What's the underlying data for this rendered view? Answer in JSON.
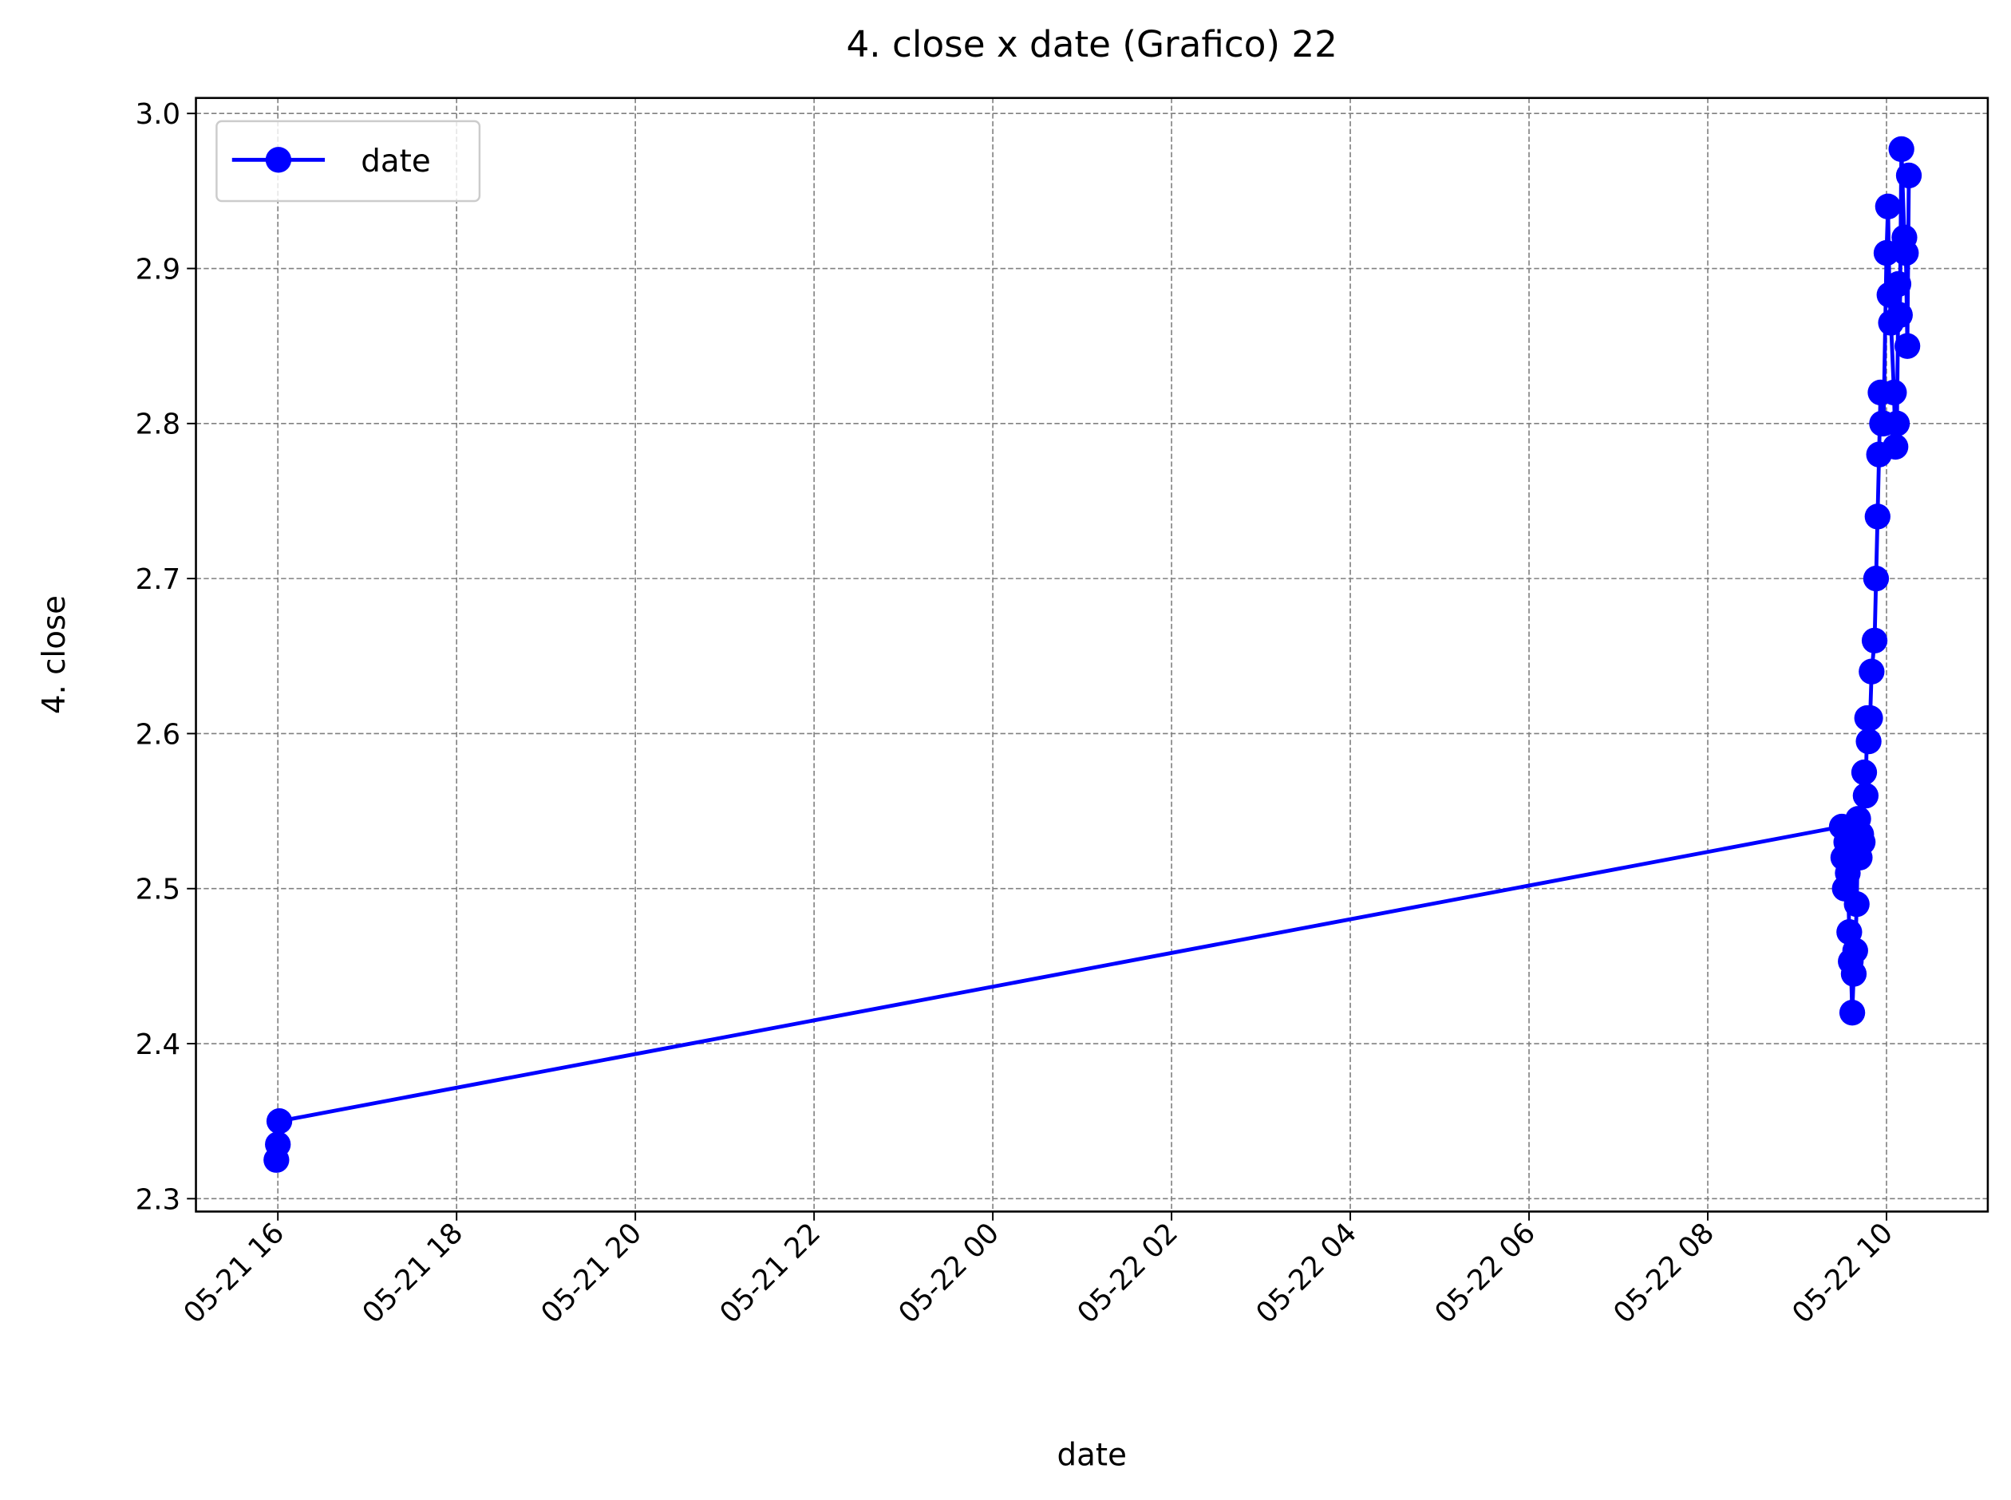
{
  "chart_data": {
    "type": "line",
    "title": "4. close x date (Grafico) 22",
    "x_label": "date",
    "y_label": "4. close",
    "x": [
      "05-21 15:59",
      "05-21 16:00",
      "05-21 16:01",
      "05-22 09:30",
      "05-22 09:31",
      "05-22 09:32",
      "05-22 09:33",
      "05-22 09:34",
      "05-22 09:35",
      "05-22 09:36",
      "05-22 09:37",
      "05-22 09:38",
      "05-22 09:39",
      "05-22 09:40",
      "05-22 09:41",
      "05-22 09:42",
      "05-22 09:43",
      "05-22 09:44",
      "05-22 09:45",
      "05-22 09:46",
      "05-22 09:47",
      "05-22 09:48",
      "05-22 09:49",
      "05-22 09:50",
      "05-22 09:52",
      "05-22 09:53",
      "05-22 09:54",
      "05-22 09:55",
      "05-22 09:56",
      "05-22 09:57",
      "05-22 09:58",
      "05-22 10:00",
      "05-22 10:01",
      "05-22 10:02",
      "05-22 10:03",
      "05-22 10:05",
      "05-22 10:06",
      "05-22 10:07",
      "05-22 10:08",
      "05-22 10:09",
      "05-22 10:10",
      "05-22 10:12",
      "05-22 10:13",
      "05-22 10:14",
      "05-22 10:15"
    ],
    "series": [
      {
        "name": "date",
        "color": "#0000ff",
        "values": [
          2.325,
          2.335,
          2.35,
          2.54,
          2.52,
          2.5,
          2.53,
          2.51,
          2.472,
          2.453,
          2.42,
          2.445,
          2.46,
          2.49,
          2.545,
          2.52,
          2.535,
          2.53,
          2.575,
          2.56,
          2.61,
          2.595,
          2.61,
          2.64,
          2.66,
          2.7,
          2.74,
          2.78,
          2.82,
          2.8,
          2.8,
          2.91,
          2.94,
          2.883,
          2.865,
          2.82,
          2.785,
          2.8,
          2.89,
          2.87,
          2.977,
          2.92,
          2.91,
          2.85,
          2.96
        ]
      }
    ],
    "xlim": [
      "05-21 15:05",
      "05-22 11:08"
    ],
    "xticks": [
      {
        "value": "05-21 16:00",
        "label": "05-21 16"
      },
      {
        "value": "05-21 18:00",
        "label": "05-21 18"
      },
      {
        "value": "05-21 20:00",
        "label": "05-21 20"
      },
      {
        "value": "05-21 22:00",
        "label": "05-21 22"
      },
      {
        "value": "05-22 00:00",
        "label": "05-22 00"
      },
      {
        "value": "05-22 02:00",
        "label": "05-22 02"
      },
      {
        "value": "05-22 04:00",
        "label": "05-22 04"
      },
      {
        "value": "05-22 06:00",
        "label": "05-22 06"
      },
      {
        "value": "05-22 08:00",
        "label": "05-22 08"
      },
      {
        "value": "05-22 10:00",
        "label": "05-22 10"
      }
    ],
    "ylim": [
      2.2917,
      3.01
    ],
    "yticks": [
      {
        "value": 2.3,
        "label": "2.3"
      },
      {
        "value": 2.4,
        "label": "2.4"
      },
      {
        "value": 2.5,
        "label": "2.5"
      },
      {
        "value": 2.6,
        "label": "2.6"
      },
      {
        "value": 2.7,
        "label": "2.7"
      },
      {
        "value": 2.8,
        "label": "2.8"
      },
      {
        "value": 2.9,
        "label": "2.9"
      },
      {
        "value": 3.0,
        "label": "3.0"
      }
    ],
    "grid": true,
    "legend": "upper-left"
  }
}
